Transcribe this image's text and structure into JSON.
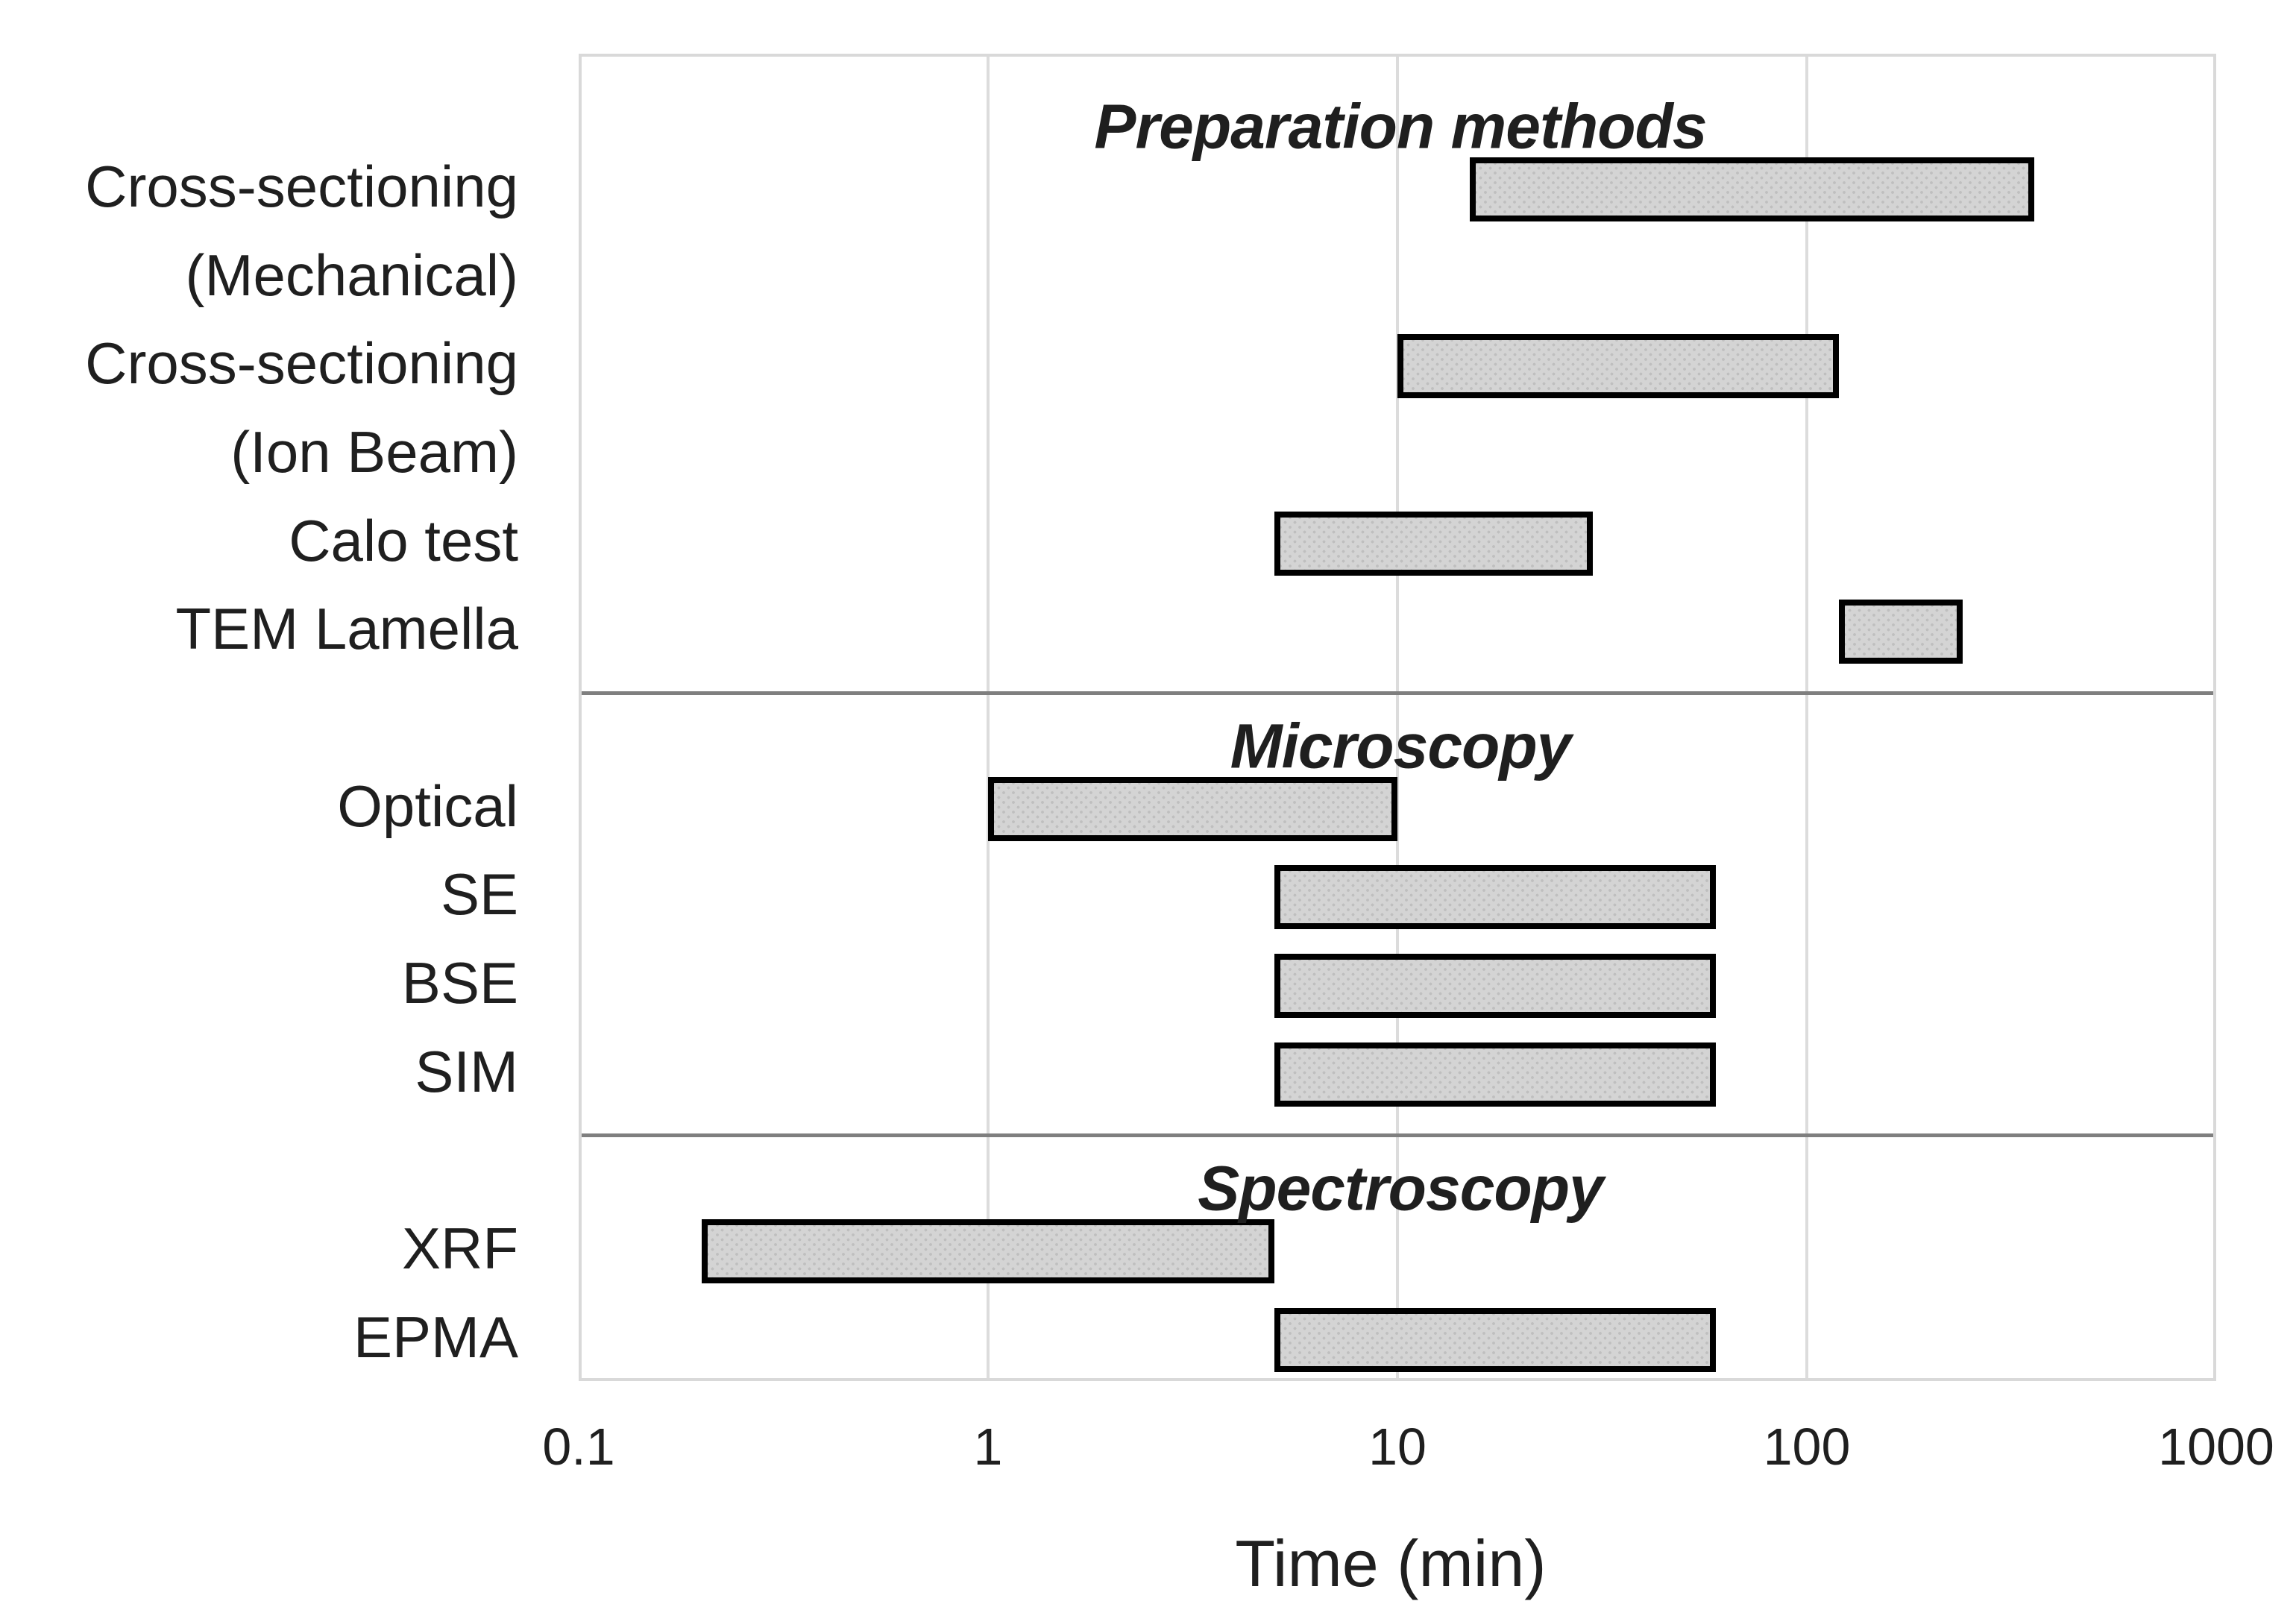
{
  "colors": {
    "background": "#ffffff",
    "bar_fill": "#d4d4d4",
    "bar_pattern_dot": "#bfbfbf",
    "bar_border": "#000000",
    "gridline": "#dcdcdc",
    "plot_frame": "#d9d9d9",
    "section_separator": "#7f7f7f",
    "text": "#1f1f1f"
  },
  "chart_data": {
    "type": "bar",
    "orientation": "horizontal",
    "x_scale": "log",
    "xlabel": "Time (min)",
    "xlim": [
      0.1,
      1000
    ],
    "grid": "vertical-decades",
    "x_ticks": [
      {
        "label": "0.1",
        "value": 0.1
      },
      {
        "label": "1",
        "value": 1
      },
      {
        "label": "10",
        "value": 10
      },
      {
        "label": "100",
        "value": 100
      },
      {
        "label": "1000",
        "value": 1000
      }
    ],
    "sections": [
      {
        "title": "Preparation methods",
        "items": [
          {
            "label_lines": [
              "Cross-sectioning",
              "(Mechanical)"
            ],
            "start": 15,
            "end": 360
          },
          {
            "label_lines": [
              "Cross-sectioning",
              "(Ion Beam)"
            ],
            "start": 10,
            "end": 120
          },
          {
            "label_lines": [
              "Calo test"
            ],
            "start": 5,
            "end": 30
          },
          {
            "label_lines": [
              "TEM Lamella"
            ],
            "start": 120,
            "end": 240
          }
        ]
      },
      {
        "title": "Microscopy",
        "items": [
          {
            "label_lines": [
              "Optical"
            ],
            "start": 1,
            "end": 10
          },
          {
            "label_lines": [
              "SE"
            ],
            "start": 5,
            "end": 60
          },
          {
            "label_lines": [
              "BSE"
            ],
            "start": 5,
            "end": 60
          },
          {
            "label_lines": [
              "SIM"
            ],
            "start": 5,
            "end": 60
          }
        ]
      },
      {
        "title": "Spectroscopy",
        "items": [
          {
            "label_lines": [
              "XRF"
            ],
            "start": 0.2,
            "end": 5
          },
          {
            "label_lines": [
              "EPMA"
            ],
            "start": 5,
            "end": 60
          }
        ]
      }
    ]
  }
}
